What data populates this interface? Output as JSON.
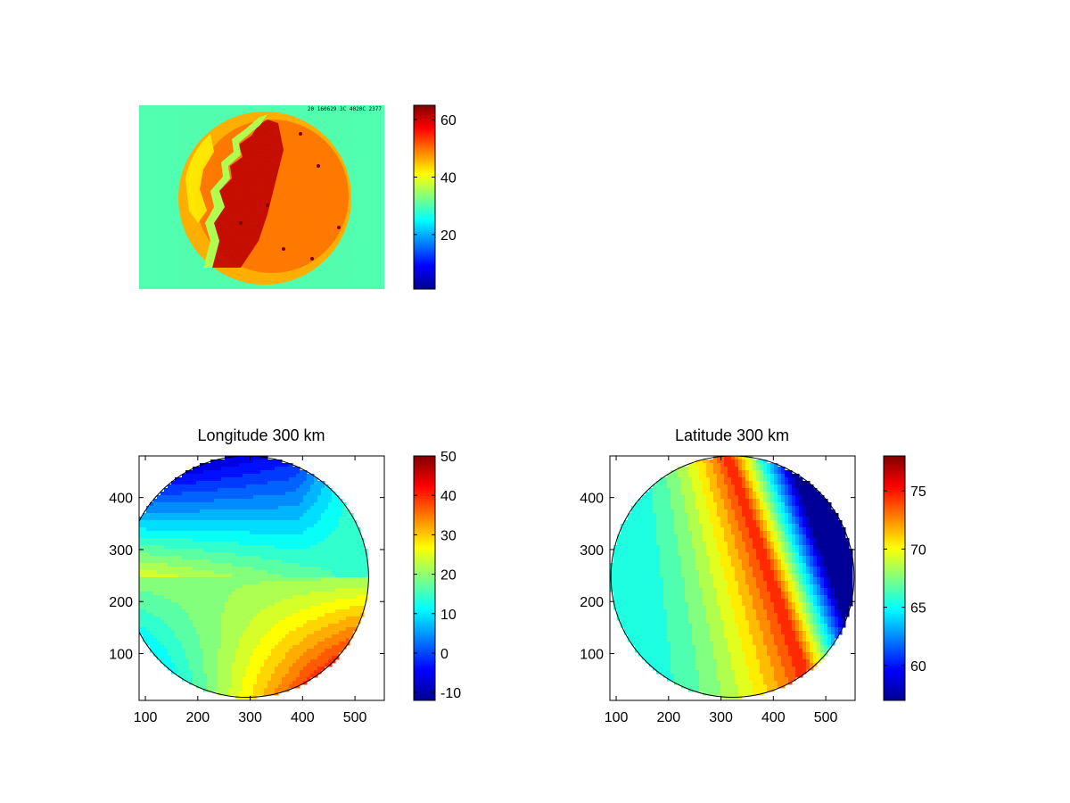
{
  "chart_data": [
    {
      "type": "heatmap",
      "title": "",
      "image_stamp": "20 160629 3C 4020C 2377",
      "colorbar": {
        "min": 1,
        "max": 65,
        "ticks": [
          "20",
          "40",
          "60"
        ],
        "tick_values": [
          20,
          40,
          60
        ]
      },
      "background_value": 30,
      "disk_value_range": [
        38,
        65
      ]
    },
    {
      "type": "heatmap",
      "title": "Longitude 300 km",
      "xlabel": "",
      "ylabel": "",
      "xlim": [
        88,
        556
      ],
      "ylim": [
        10,
        480
      ],
      "x_ticks": [
        "100",
        "200",
        "300",
        "400",
        "500"
      ],
      "x_tick_values": [
        100,
        200,
        300,
        400,
        500
      ],
      "y_ticks": [
        "100",
        "200",
        "300",
        "400"
      ],
      "y_tick_values": [
        100,
        200,
        300,
        400
      ],
      "disk_center": [
        294,
        248
      ],
      "disk_radius": 232,
      "colorbar": {
        "min": -12,
        "max": 50,
        "ticks": [
          "-10",
          "0",
          "10",
          "20",
          "30",
          "40",
          "50"
        ],
        "tick_values": [
          -10,
          0,
          10,
          20,
          30,
          40,
          50
        ]
      },
      "value_range": [
        -12,
        50
      ],
      "contour_style": "filled contours with black contour lines"
    },
    {
      "type": "heatmap",
      "title": "Latitude 300 km",
      "xlabel": "",
      "ylabel": "",
      "xlim": [
        88,
        556
      ],
      "ylim": [
        10,
        480
      ],
      "x_ticks": [
        "100",
        "200",
        "300",
        "400",
        "500"
      ],
      "x_tick_values": [
        100,
        200,
        300,
        400,
        500
      ],
      "y_ticks": [
        "100",
        "200",
        "300",
        "400"
      ],
      "y_tick_values": [
        100,
        200,
        300,
        400
      ],
      "disk_center": [
        322,
        248
      ],
      "disk_radius": 232,
      "colorbar": {
        "min": 57,
        "max": 78,
        "ticks": [
          "60",
          "65",
          "70",
          "75"
        ],
        "tick_values": [
          60,
          65,
          70,
          75
        ]
      },
      "value_range": [
        57,
        78
      ],
      "contour_style": "filled contours with black contour lines"
    }
  ]
}
